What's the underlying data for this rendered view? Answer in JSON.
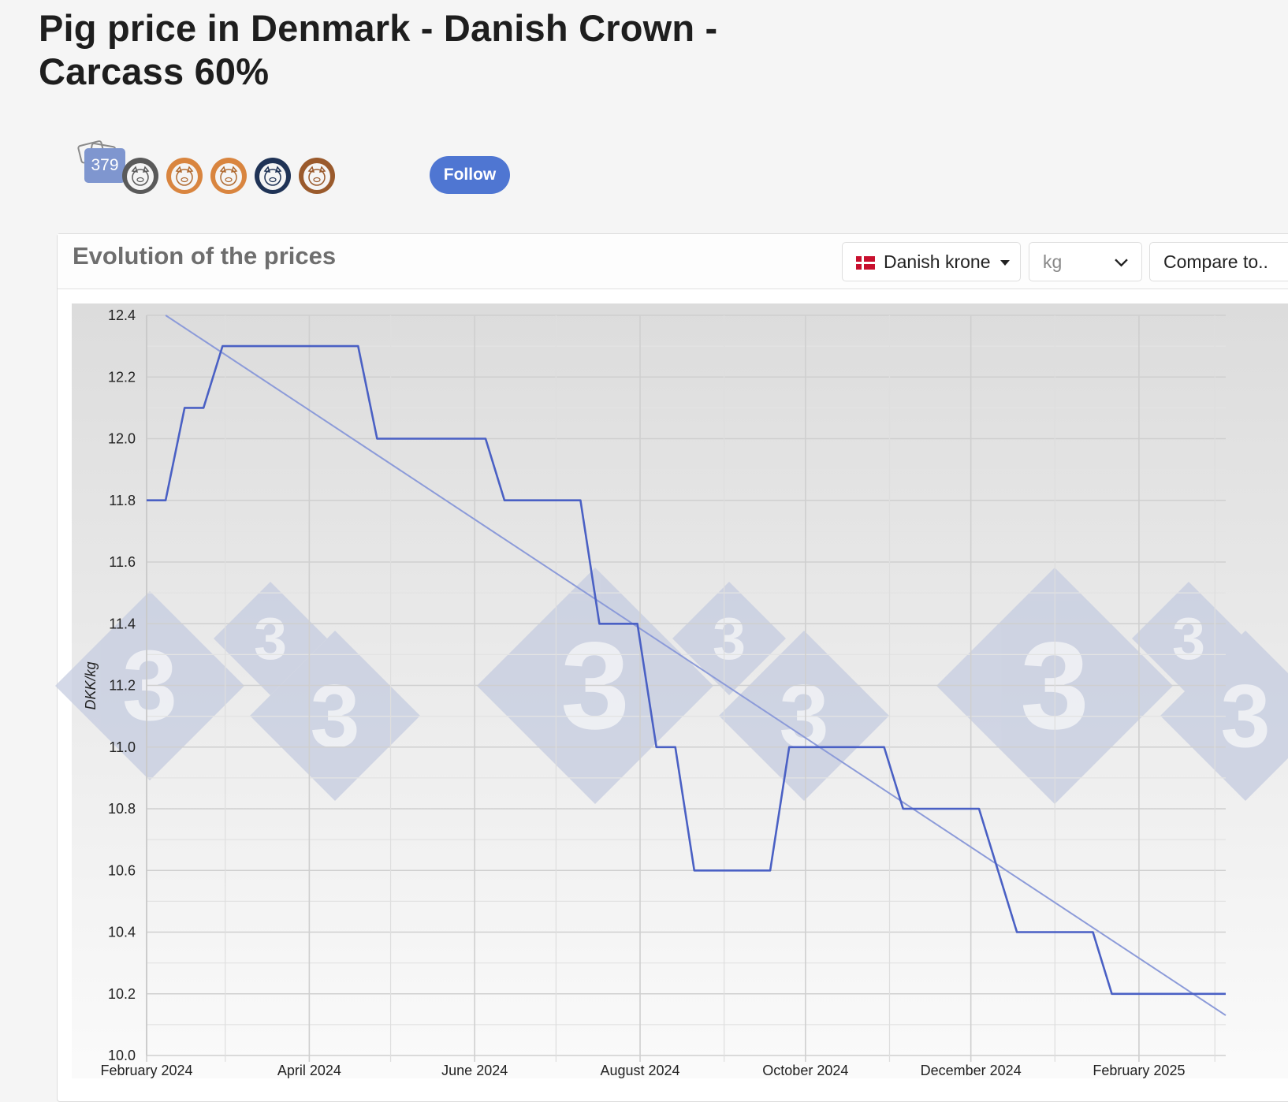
{
  "page": {
    "title": "Pig price in Denmark - Danish Crown - Carcass 60%"
  },
  "badges": {
    "count": "379",
    "follow_label": "Follow",
    "pig_icons": [
      {
        "name": "pig-badge-gray-icon",
        "color": "#5a5a5a"
      },
      {
        "name": "pig-badge-orange-icon",
        "color": "#d9853f"
      },
      {
        "name": "pig-badge-orange-icon",
        "color": "#d9853f"
      },
      {
        "name": "pig-badge-navy-icon",
        "color": "#1f3356"
      },
      {
        "name": "pig-badge-brown-icon",
        "color": "#9a5a2c"
      }
    ]
  },
  "panel": {
    "title": "Evolution of the prices",
    "currency_label": "Danish krone",
    "unit_value": "kg",
    "compare_label": "Compare to.."
  },
  "colors": {
    "series_line": "#4a60c4",
    "trend_line": "#8c9bd9",
    "follow_button": "#4f76d2",
    "count_badge": "#7f96cf",
    "watermark": "#c5cce0"
  },
  "chart_data": {
    "type": "line",
    "title": "",
    "xlabel": "",
    "ylabel": "DKK/kg",
    "ylim": [
      10.0,
      12.4
    ],
    "yticks": [
      "12.4",
      "12.2",
      "12.0",
      "11.8",
      "11.6",
      "11.4",
      "11.2",
      "11.0",
      "10.8",
      "10.6",
      "10.4",
      "10.2",
      "10.0"
    ],
    "x_tick_labels": [
      "February 2024",
      "April 2024",
      "June 2024",
      "August 2024",
      "October 2024",
      "December 2024",
      "February 2025"
    ],
    "xlim": [
      "2024-02-01",
      "2025-03-05"
    ],
    "grid": true,
    "series": [
      {
        "points": [
          {
            "x": "2024-02-01",
            "y": 11.8
          },
          {
            "x": "2024-02-08",
            "y": 11.8
          },
          {
            "x": "2024-02-15",
            "y": 12.1
          },
          {
            "x": "2024-02-22",
            "y": 12.1
          },
          {
            "x": "2024-02-29",
            "y": 12.3
          },
          {
            "x": "2024-04-19",
            "y": 12.3
          },
          {
            "x": "2024-04-26",
            "y": 12.0
          },
          {
            "x": "2024-06-05",
            "y": 12.0
          },
          {
            "x": "2024-06-12",
            "y": 11.8
          },
          {
            "x": "2024-07-10",
            "y": 11.8
          },
          {
            "x": "2024-07-17",
            "y": 11.4
          },
          {
            "x": "2024-07-31",
            "y": 11.4
          },
          {
            "x": "2024-08-07",
            "y": 11.0
          },
          {
            "x": "2024-08-14",
            "y": 11.0
          },
          {
            "x": "2024-08-21",
            "y": 10.6
          },
          {
            "x": "2024-09-18",
            "y": 10.6
          },
          {
            "x": "2024-09-25",
            "y": 11.0
          },
          {
            "x": "2024-10-30",
            "y": 11.0
          },
          {
            "x": "2024-11-06",
            "y": 10.8
          },
          {
            "x": "2024-12-04",
            "y": 10.8
          },
          {
            "x": "2024-12-18",
            "y": 10.4
          },
          {
            "x": "2025-01-15",
            "y": 10.4
          },
          {
            "x": "2025-01-22",
            "y": 10.2
          },
          {
            "x": "2025-03-05",
            "y": 10.2
          }
        ]
      },
      {
        "points": [
          {
            "x": "2024-02-08",
            "y": 12.4
          },
          {
            "x": "2025-03-05",
            "y": 10.13
          }
        ]
      }
    ]
  }
}
